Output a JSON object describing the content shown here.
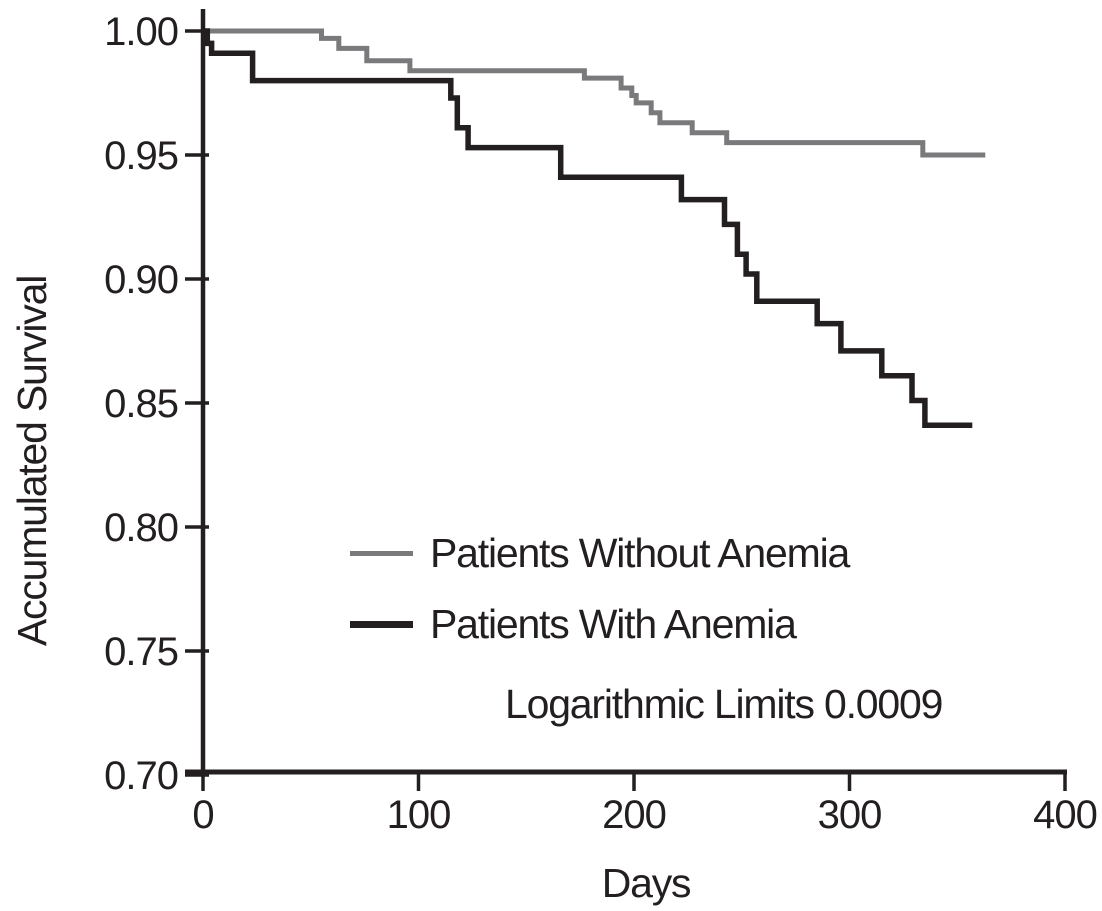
{
  "figure": {
    "background": "#ffffff",
    "text_color": "#231f20"
  },
  "chart_data": {
    "type": "line",
    "subtype": "kaplan-meier-step",
    "title": "",
    "xlabel": "Days",
    "ylabel": "Accumulated Survival",
    "xlim": [
      0,
      400
    ],
    "ylim": [
      0.7,
      1.0
    ],
    "grid": false,
    "legend_position": "inside-lower-left",
    "annotation": "Logarithmic Limits 0.0009",
    "xticks": [
      0,
      100,
      200,
      300,
      400
    ],
    "xtick_labels": [
      "0",
      "100",
      "200",
      "300",
      "400"
    ],
    "yticks": [
      1.0,
      0.95,
      0.9,
      0.85,
      0.8,
      0.75,
      0.7
    ],
    "ytick_labels": [
      "1.00",
      "0.95",
      "0.90",
      "0.85",
      "0.80",
      "0.75",
      "0.70"
    ],
    "series": [
      {
        "name": "Patients Without Anemia",
        "color": "#7a7a7d",
        "line_width": 5,
        "points": [
          [
            0,
            1.0
          ],
          [
            55,
            0.997
          ],
          [
            63,
            0.993
          ],
          [
            76,
            0.988
          ],
          [
            96,
            0.984
          ],
          [
            177,
            0.981
          ],
          [
            194,
            0.977
          ],
          [
            199,
            0.974
          ],
          [
            201,
            0.971
          ],
          [
            208,
            0.967
          ],
          [
            212,
            0.963
          ],
          [
            227,
            0.959
          ],
          [
            243,
            0.955
          ],
          [
            334,
            0.95
          ],
          [
            363,
            0.95
          ]
        ]
      },
      {
        "name": "Patients With Anemia",
        "color": "#231f20",
        "line_width": 5.5,
        "points": [
          [
            0,
            1.0
          ],
          [
            2,
            0.995
          ],
          [
            4,
            0.991
          ],
          [
            23,
            0.98
          ],
          [
            115,
            0.973
          ],
          [
            118,
            0.961
          ],
          [
            123,
            0.953
          ],
          [
            166,
            0.941
          ],
          [
            222,
            0.932
          ],
          [
            242,
            0.922
          ],
          [
            248,
            0.91
          ],
          [
            252,
            0.902
          ],
          [
            257,
            0.891
          ],
          [
            285,
            0.882
          ],
          [
            296,
            0.871
          ],
          [
            315,
            0.861
          ],
          [
            329,
            0.851
          ],
          [
            335,
            0.841
          ],
          [
            357,
            0.841
          ]
        ]
      }
    ]
  }
}
